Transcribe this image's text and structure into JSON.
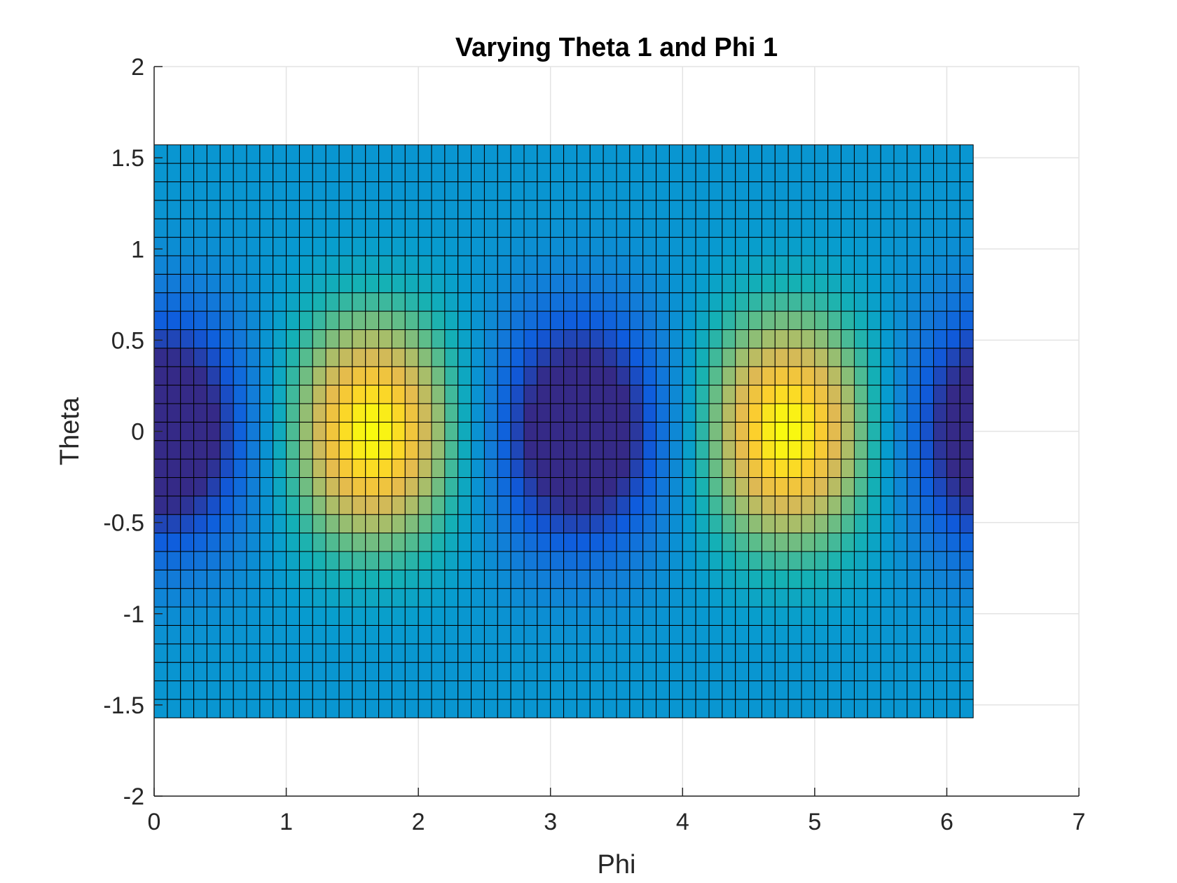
{
  "chart_data": {
    "type": "heatmap",
    "title": "Varying Theta 1 and Phi 1",
    "xlabel": "Phi",
    "ylabel": "Theta",
    "xlim": [
      0,
      7
    ],
    "ylim": [
      -2,
      2
    ],
    "xticks": [
      "0",
      "1",
      "2",
      "3",
      "4",
      "5",
      "6",
      "7"
    ],
    "yticks": [
      "-2",
      "-1.5",
      "-1",
      "-0.5",
      "0",
      "0.5",
      "1",
      "1.5",
      "2"
    ],
    "grid": true,
    "colormap": "parula",
    "x_range": [
      0,
      6.2
    ],
    "y_range": [
      -1.5708,
      1.5708
    ],
    "grid_cols": 62,
    "grid_rows": 31,
    "peaks": [
      {
        "x": 1.65,
        "y": 0.1,
        "value": "high"
      },
      {
        "x": 4.8,
        "y": -0.05,
        "value": "high"
      }
    ],
    "troughs": [
      {
        "x": 0.15,
        "y": 0.1,
        "value": "low"
      },
      {
        "x": 3.2,
        "y": 0.1,
        "value": "low"
      },
      {
        "x": 6.2,
        "y": -0.05,
        "value": "low"
      }
    ],
    "value_model": "cos(theta)^2 * cos(2*(phi - 1.65)) pattern: maxima near phi=1.65 and 4.8 at theta=0, minima near phi=0.15, 3.2, 6.2",
    "colors": {
      "low": "#352a87",
      "mid": "#0f9ad8",
      "high": "#f9fb0e"
    }
  }
}
